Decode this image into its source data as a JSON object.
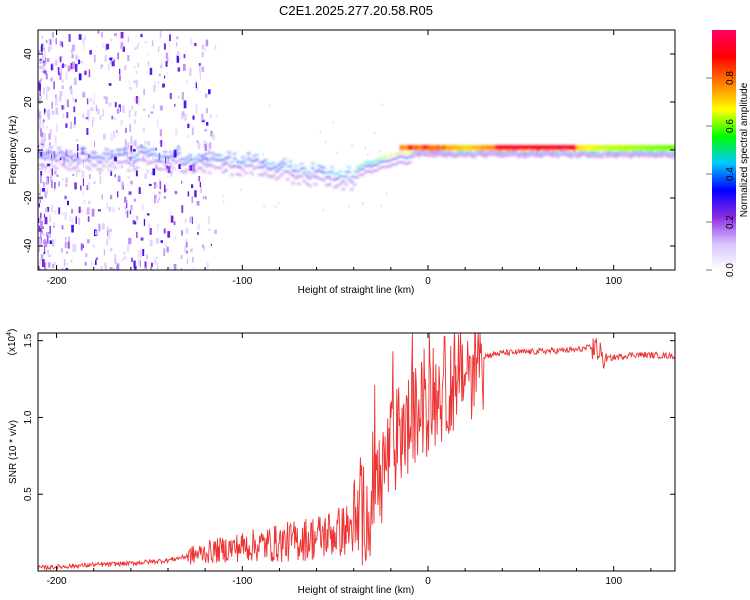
{
  "title": "C2E1.2025.277.20.58.R05",
  "chart_data": [
    {
      "type": "heatmap",
      "name": "spectrogram",
      "xlabel": "Height of straight line (km)",
      "ylabel": "Frequency (Hz)",
      "xlim": [
        -210,
        133
      ],
      "ylim": [
        -50,
        50
      ],
      "xticks": [
        -200,
        -100,
        0,
        100
      ],
      "yticks": [
        40,
        20,
        0,
        -20,
        -40
      ],
      "colorbar": {
        "label": "Normalized spectral amplitude",
        "range": [
          0,
          1
        ],
        "ticks": [
          0.0,
          0.2,
          0.4,
          0.6,
          0.8
        ],
        "colormap": [
          "#ffffff",
          "#d9c2ff",
          "#8a2be2",
          "#0000ff",
          "#00c8ff",
          "#00ff00",
          "#ffff00",
          "#ff8000",
          "#ff0000",
          "#ff0066"
        ]
      },
      "ridge": [
        {
          "h": -200,
          "f": 2,
          "amp": 0.35
        },
        {
          "h": -150,
          "f": 2,
          "amp": 0.4
        },
        {
          "h": -100,
          "f": 0,
          "amp": 0.4
        },
        {
          "h": -70,
          "f": -4,
          "amp": 0.45
        },
        {
          "h": -45,
          "f": -7,
          "amp": 0.45
        },
        {
          "h": -30,
          "f": -2,
          "amp": 0.55
        },
        {
          "h": -15,
          "f": 1,
          "amp": 0.75
        },
        {
          "h": 0,
          "f": 1,
          "amp": 0.8
        },
        {
          "h": 20,
          "f": 1,
          "amp": 0.7
        },
        {
          "h": 50,
          "f": 1,
          "amp": 0.85
        },
        {
          "h": 90,
          "f": 1,
          "amp": 0.65
        },
        {
          "h": 133,
          "f": 1,
          "amp": 0.6
        }
      ]
    },
    {
      "type": "line",
      "name": "snr",
      "xlabel": "Height of straight line (km)",
      "ylabel": "SNR (10 * v/v)",
      "multiplier": "(x10",
      "multiplier_exp": "4",
      "multiplier_close": ")",
      "xlim": [
        -210,
        133
      ],
      "ylim": [
        0,
        1.55
      ],
      "xticks": [
        -200,
        -100,
        0,
        100
      ],
      "yticks": [
        1.5,
        1.0,
        0.5
      ],
      "color": "#ee3333",
      "x": [
        -210,
        -180,
        -160,
        -140,
        -120,
        -100,
        -80,
        -60,
        -40,
        -30,
        -20,
        -10,
        0,
        10,
        20,
        30,
        40,
        60,
        80,
        90,
        95,
        110,
        133
      ],
      "y": [
        0.02,
        0.04,
        0.05,
        0.07,
        0.12,
        0.16,
        0.18,
        0.22,
        0.28,
        0.45,
        0.8,
        0.95,
        1.1,
        1.2,
        1.3,
        1.4,
        1.42,
        1.43,
        1.44,
        1.46,
        1.38,
        1.41,
        1.4
      ]
    }
  ]
}
